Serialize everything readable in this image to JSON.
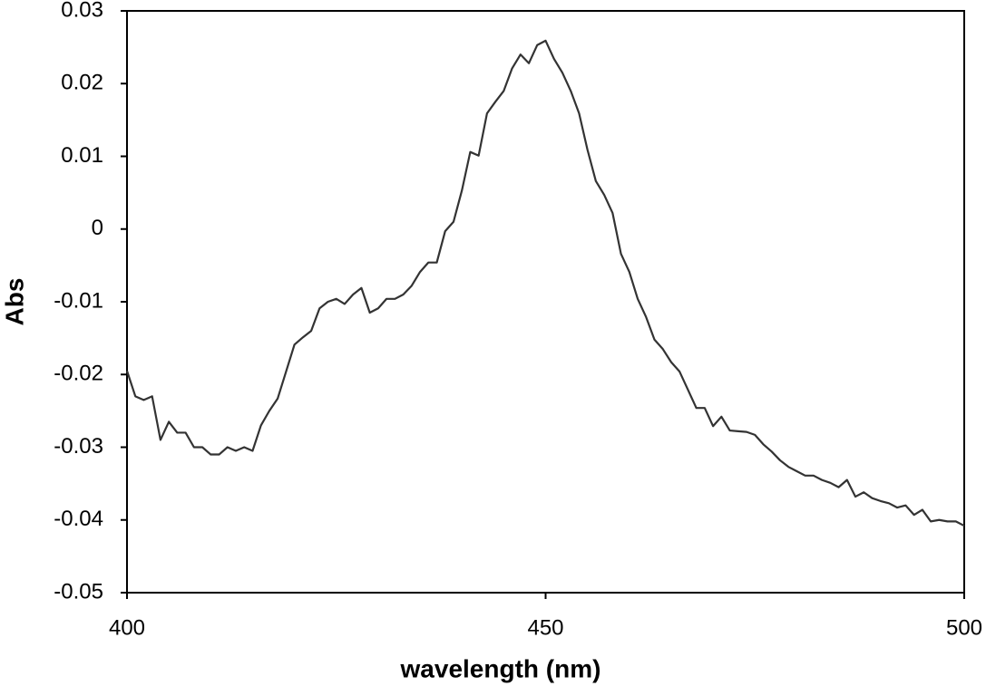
{
  "chart_data": {
    "type": "line",
    "x_label": "wavelength (nm)",
    "y_label": "Abs",
    "x": [
      400,
      401,
      402,
      403,
      404,
      405,
      406,
      407,
      408,
      409,
      410,
      411,
      412,
      413,
      414,
      415,
      416,
      417,
      418,
      419,
      420,
      421,
      422,
      423,
      424,
      425,
      426,
      427,
      428,
      429,
      430,
      431,
      432,
      433,
      434,
      435,
      436,
      437,
      438,
      439,
      440,
      441,
      442,
      443,
      444,
      445,
      446,
      447,
      448,
      449,
      450,
      451,
      452,
      453,
      454,
      455,
      456,
      457,
      458,
      459,
      460,
      461,
      462,
      463,
      464,
      465,
      466,
      467,
      468,
      469,
      470,
      471,
      472,
      473,
      474,
      475,
      476,
      477,
      478,
      479,
      480,
      481,
      482,
      483,
      484,
      485,
      486,
      487,
      488,
      489,
      490,
      491,
      492,
      493,
      494,
      495,
      496,
      497,
      498,
      499,
      500
    ],
    "series": [
      {
        "name": "Abs",
        "color": "#333333",
        "values": [
          -0.0195,
          -0.023,
          -0.0235,
          -0.023,
          -0.029,
          -0.0265,
          -0.028,
          -0.028,
          -0.03,
          -0.03,
          -0.031,
          -0.031,
          -0.03,
          -0.0305,
          -0.03,
          -0.0305,
          -0.027,
          -0.025,
          -0.0233,
          -0.0196,
          -0.0159,
          -0.0149,
          -0.014,
          -0.0109,
          -0.01,
          -0.0096,
          -0.0103,
          -0.009,
          -0.0081,
          -0.0115,
          -0.0109,
          -0.0096,
          -0.0096,
          -0.009,
          -0.0078,
          -0.0059,
          -0.0046,
          -0.0046,
          -0.0003,
          0.001,
          0.0053,
          0.0106,
          0.0101,
          0.0159,
          0.0175,
          0.019,
          0.0221,
          0.024,
          0.0228,
          0.0253,
          0.0259,
          0.0234,
          0.0215,
          0.019,
          0.0159,
          0.0109,
          0.0066,
          0.0047,
          0.0022,
          -0.0034,
          -0.0059,
          -0.0096,
          -0.0121,
          -0.0152,
          -0.0165,
          -0.0183,
          -0.0196,
          -0.0221,
          -0.0246,
          -0.0246,
          -0.0271,
          -0.0258,
          -0.0277,
          -0.0278,
          -0.0279,
          -0.0283,
          -0.0296,
          -0.0306,
          -0.0318,
          -0.0327,
          -0.0333,
          -0.0339,
          -0.0339,
          -0.0345,
          -0.0349,
          -0.0355,
          -0.0345,
          -0.0368,
          -0.0362,
          -0.037,
          -0.0374,
          -0.0377,
          -0.0383,
          -0.038,
          -0.0393,
          -0.0386,
          -0.0402,
          -0.04,
          -0.0402,
          -0.0402,
          -0.0408
        ]
      }
    ],
    "xlim": [
      400,
      500
    ],
    "xticks": [
      400,
      450,
      500
    ],
    "ylim": [
      -0.05,
      0.03
    ],
    "yticks": [
      -0.05,
      -0.04,
      -0.03,
      -0.02,
      -0.01,
      0,
      0.01,
      0.02,
      0.03
    ],
    "grid": false
  }
}
